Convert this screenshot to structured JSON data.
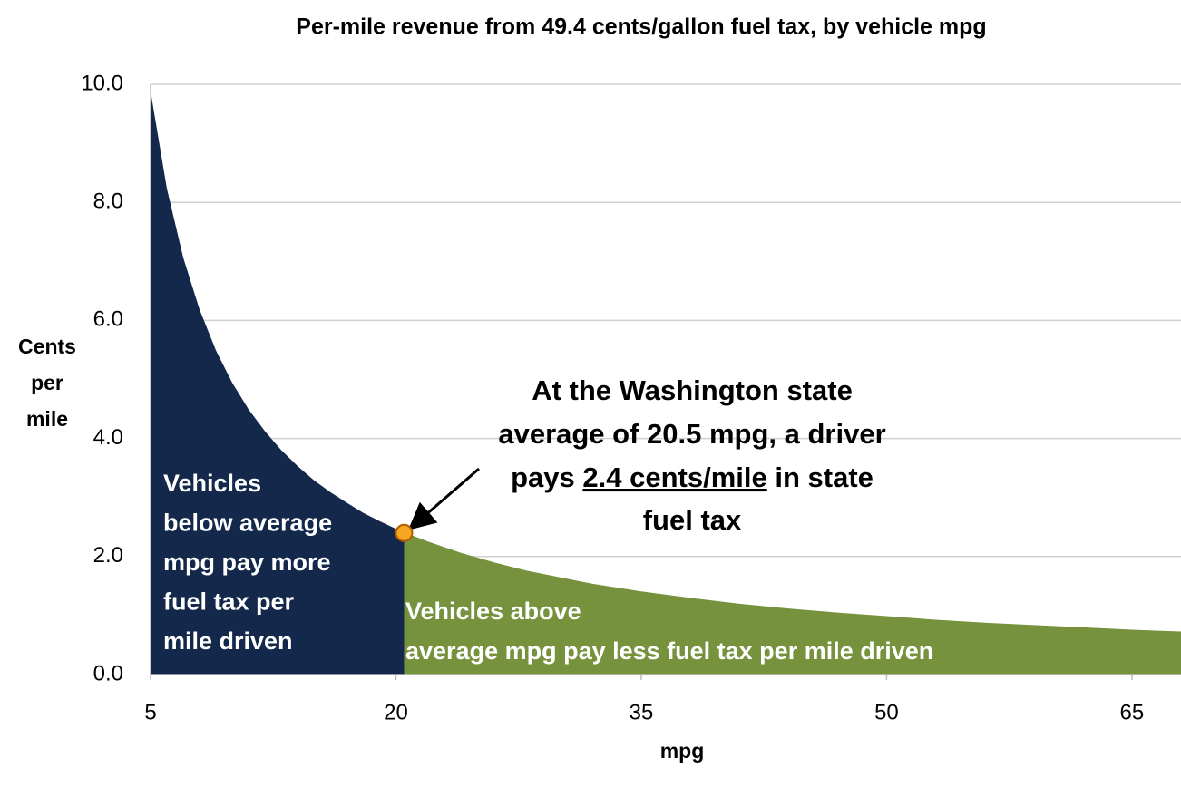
{
  "chart_data": {
    "type": "area",
    "title": "Per-mile revenue from 49.4 cents/gallon fuel tax, by vehicle mpg",
    "x_label": "mpg",
    "y_label": [
      "Cents",
      "per",
      "mile"
    ],
    "xlim": [
      5,
      68
    ],
    "ylim": [
      0,
      10
    ],
    "xticks": [
      5,
      20,
      35,
      50,
      65
    ],
    "yticks": [
      {
        "value": 0,
        "label": "0.0"
      },
      {
        "value": 2,
        "label": "2.0"
      },
      {
        "value": 4,
        "label": "4.0"
      },
      {
        "value": 6,
        "label": "6.0"
      },
      {
        "value": 8,
        "label": "8.0"
      },
      {
        "value": 10,
        "label": "10.0"
      }
    ],
    "grid": true,
    "series": [
      {
        "color": "#13284a",
        "x": [
          5,
          6,
          7,
          8,
          9,
          10,
          11,
          12,
          13,
          14,
          15,
          16,
          17,
          18,
          19,
          20,
          20.5
        ],
        "values": [
          9.88,
          8.23,
          7.06,
          6.18,
          5.49,
          4.94,
          4.49,
          4.12,
          3.8,
          3.53,
          3.29,
          3.09,
          2.91,
          2.74,
          2.6,
          2.47,
          2.41
        ],
        "label": [
          "Vehicles",
          "below average",
          "mpg pay more",
          "fuel tax per",
          "mile driven"
        ]
      },
      {
        "color": "#76923c",
        "x": [
          20.5,
          22,
          24,
          26,
          28,
          30,
          32,
          35,
          38,
          41,
          44,
          47,
          50,
          53,
          56,
          59,
          62,
          65,
          68
        ],
        "values": [
          2.41,
          2.25,
          2.06,
          1.9,
          1.76,
          1.65,
          1.54,
          1.41,
          1.3,
          1.2,
          1.12,
          1.05,
          0.99,
          0.93,
          0.88,
          0.84,
          0.8,
          0.76,
          0.73
        ],
        "label": [
          "Vehicles above",
          "average mpg pay less fuel tax per mile driven"
        ]
      }
    ],
    "highlight": {
      "x": 20.5,
      "y": 2.4,
      "color": "#f5a623"
    },
    "annotation": {
      "line1": "At the Washington state",
      "line2": "average of 20.5 mpg, a driver",
      "line3_before": "pays ",
      "line3_underlined": "2.4 cents/mile",
      "line3_after": " in state",
      "line4": "fuel tax"
    }
  }
}
